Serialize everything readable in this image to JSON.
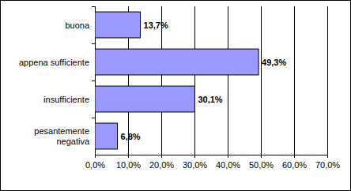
{
  "chart_data": {
    "type": "bar",
    "orientation": "horizontal",
    "categories": [
      "buona",
      "appena sufficiente",
      "insufficiente",
      "pesantemente negativa"
    ],
    "values": [
      13.7,
      49.3,
      30.1,
      6.8
    ],
    "value_labels": [
      "13,7%",
      "49,3%",
      "30,1%",
      "6,8%"
    ],
    "data_labels": true,
    "color": "#9999ff",
    "xlim": [
      0,
      70
    ],
    "xticks": [
      {
        "value": 0,
        "label": "0,0%"
      },
      {
        "value": 10,
        "label": "10,0%"
      },
      {
        "value": 20,
        "label": "20,0%"
      },
      {
        "value": 30,
        "label": "30,0%"
      },
      {
        "value": 40,
        "label": "40,0%"
      },
      {
        "value": 50,
        "label": "50,0%"
      },
      {
        "value": 60,
        "label": "60,0%"
      },
      {
        "value": 70,
        "label": "70,0%"
      }
    ],
    "grid": true
  }
}
